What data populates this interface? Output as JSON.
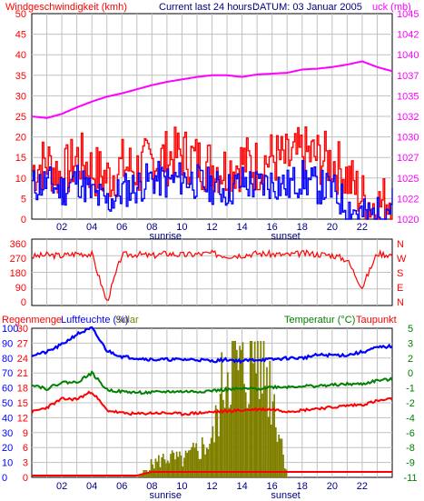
{
  "header": {
    "wind_title": "Windgeschwindigkeit (kmh)",
    "current_label": "Current last 24 hours :",
    "date_label": "DATUM: 03 Januar 2005",
    "pressure_title": "uck (mb)"
  },
  "x_axis": {
    "ticks": [
      "02",
      "04",
      "06",
      "08",
      "10",
      "12",
      "14",
      "16",
      "18",
      "20",
      "22"
    ],
    "sunrise_label": "sunrise",
    "sunset_label": "sunset"
  },
  "humidity_header": {
    "rain_label": "Regenmenge",
    "humidity_label": "Luftfeuchte (%)",
    "solar_label": "Solar",
    "temp_label": "Temperatur (°C)",
    "dew_label": "Taupunkt"
  },
  "colors": {
    "wind": "#ff0000",
    "gust": "#0000ff",
    "pressure": "#ff00ff",
    "direction": "#ff0000",
    "humidity": "#0000ff",
    "temperature": "#008000",
    "dewpoint": "#ff0000",
    "solar": "#808000",
    "rain": "#ff0000",
    "grid": "#c0c0c0",
    "axis_left": "#ff0000",
    "axis_right": "#ff00ff",
    "axis_green": "#008000"
  },
  "chart_data": [
    {
      "type": "line",
      "title": "Windgeschwindigkeit (kmh) / Luftdruck (mb)",
      "x": [
        0,
        1,
        2,
        3,
        4,
        5,
        6,
        7,
        8,
        9,
        10,
        11,
        12,
        13,
        14,
        15,
        16,
        17,
        18,
        19,
        20,
        21,
        22,
        23,
        24
      ],
      "y_left_ticks": [
        "50",
        "45",
        "40",
        "35",
        "30",
        "25",
        "20",
        "15",
        "10",
        "5",
        "0"
      ],
      "y_right_ticks": [
        "1045",
        "1042",
        "1040",
        "1037",
        "1035",
        "1032",
        "1030",
        "1027",
        "1025",
        "1022",
        "1020"
      ],
      "ylim_left": [
        0,
        50
      ],
      "ylim_right": [
        1020,
        1045
      ],
      "series": [
        {
          "name": "Windgeschwindigkeit (kmh)",
          "axis": "left",
          "values": [
            12,
            14,
            10,
            15,
            12,
            10,
            13,
            12,
            14,
            15,
            16,
            14,
            13,
            12,
            14,
            13,
            15,
            14,
            16,
            15,
            14,
            10,
            5,
            3,
            6
          ]
        },
        {
          "name": "",
          "axis": "left",
          "values": [
            8,
            9,
            7,
            10,
            6,
            4,
            7,
            8,
            10,
            9,
            10,
            9,
            8,
            7,
            9,
            8,
            9,
            8,
            10,
            8,
            7,
            3,
            1,
            1,
            4
          ]
        },
        {
          "name": "Luftdruck (mb)",
          "axis": "right",
          "values": [
            1032.5,
            1032.3,
            1032.8,
            1033.6,
            1034.3,
            1034.9,
            1035.3,
            1035.8,
            1036.3,
            1036.7,
            1037,
            1037.3,
            1037.5,
            1037.5,
            1037.3,
            1037.6,
            1037.7,
            1037.8,
            1038.2,
            1038.3,
            1038.5,
            1038.8,
            1039.2,
            1038.5,
            1038
          ]
        }
      ]
    },
    {
      "type": "line",
      "title": "Windrichtung",
      "x": [
        0,
        1,
        2,
        3,
        4,
        5,
        6,
        7,
        8,
        9,
        10,
        11,
        12,
        13,
        14,
        15,
        16,
        17,
        18,
        19,
        20,
        21,
        22,
        23,
        24
      ],
      "y_left_ticks": [
        "360",
        "270",
        "180",
        "90",
        "0"
      ],
      "y_right_ticks": [
        "N",
        "W",
        "S",
        "E",
        "N"
      ],
      "ylim": [
        0,
        360
      ],
      "series": [
        {
          "name": "",
          "values": [
            280,
            290,
            285,
            300,
            295,
            0,
            290,
            295,
            285,
            300,
            290,
            295,
            300,
            285,
            290,
            300,
            295,
            290,
            300,
            295,
            290,
            260,
            90,
            300,
            290
          ]
        }
      ]
    },
    {
      "type": "line",
      "title": "Luftfeuchte / Temperatur / Taupunkt / Solar",
      "x": [
        0,
        1,
        2,
        3,
        4,
        5,
        6,
        7,
        8,
        9,
        10,
        11,
        12,
        13,
        14,
        15,
        16,
        17,
        18,
        19,
        20,
        21,
        22,
        23,
        24
      ],
      "y_left_ticks_humidity": [
        "100",
        "90",
        "80",
        "70",
        "60",
        "50",
        "40",
        "30",
        "20",
        "10",
        "0"
      ],
      "y_left_ticks_rain": [
        "30",
        "27",
        "24",
        "21",
        "18",
        "15",
        "12",
        "9",
        "6",
        "3",
        "0"
      ],
      "y_right_ticks": [
        "5",
        "3",
        "2",
        "0",
        "-1",
        "-2",
        "-4",
        "-6",
        "-8",
        "-9",
        "-11"
      ],
      "ylim_right": [
        -11,
        5
      ],
      "series": [
        {
          "name": "Luftfeuchte (%)",
          "values": [
            82,
            84,
            89,
            96,
            100,
            85,
            81,
            80,
            79,
            79,
            79,
            79,
            78,
            79,
            78,
            79,
            79,
            80,
            80,
            82,
            82,
            82,
            84,
            87,
            88
          ]
        },
        {
          "name": "Temperatur (°C)",
          "values": [
            -1,
            -1.5,
            -0.8,
            -0.8,
            0.2,
            -1.6,
            -1.8,
            -1.9,
            -1.9,
            -1.8,
            -1.8,
            -1.8,
            -1.7,
            -1.6,
            -1.5,
            -1.5,
            -1.3,
            -1.3,
            -1.2,
            -1.2,
            -1.1,
            -1,
            -1,
            -0.6,
            -0.5
          ]
        },
        {
          "name": "Taupunkt",
          "values": [
            -4,
            -3.5,
            -2.6,
            -2.6,
            -1.8,
            -3.8,
            -4.1,
            -4.2,
            -4.1,
            -4.1,
            -4.2,
            -4.1,
            -4,
            -3.9,
            -3.8,
            -3.7,
            -3.7,
            -3.9,
            -3.8,
            -3.6,
            -3.5,
            -3.3,
            -3.2,
            -2.8,
            -2.6
          ]
        },
        {
          "name": "Solar",
          "values": [
            0,
            0,
            0,
            0,
            0,
            0,
            0,
            0,
            4,
            6,
            5,
            8,
            11,
            35,
            30,
            40,
            25,
            0,
            0,
            0,
            0,
            0,
            0,
            0,
            0
          ]
        },
        {
          "name": "Regenmenge",
          "values": [
            0,
            0,
            0,
            0,
            0,
            0,
            0,
            0,
            1,
            1,
            1,
            1,
            1,
            1,
            1,
            1,
            1,
            1,
            1,
            1,
            1,
            1,
            1,
            1,
            1
          ]
        }
      ]
    }
  ]
}
